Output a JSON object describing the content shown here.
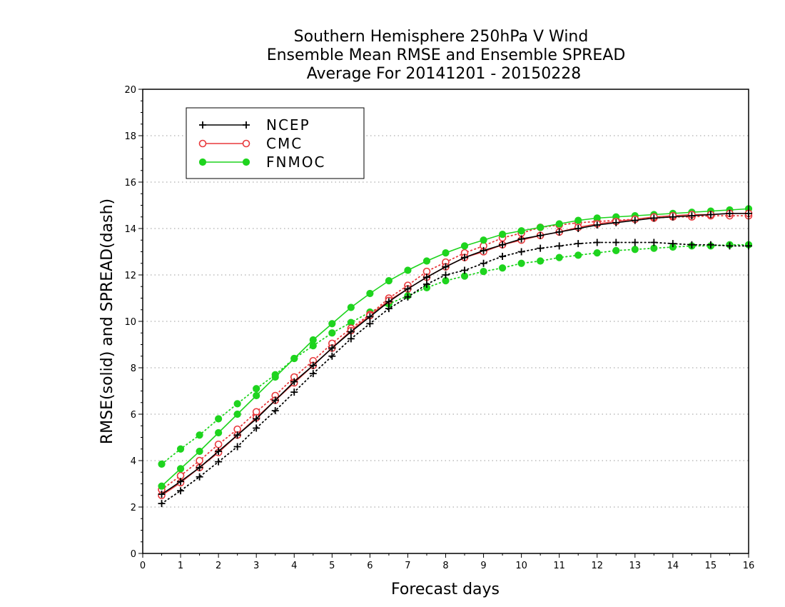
{
  "chart_data": {
    "type": "line",
    "title": [
      "Southern Hemisphere 250hPa V Wind",
      "Ensemble Mean RMSE and Ensemble SPREAD",
      "Average For 20141201 - 20150228"
    ],
    "xlabel": "Forecast days",
    "ylabel": "RMSE(solid) and SPREAD(dash)",
    "xlim": [
      0,
      16
    ],
    "ylim": [
      0,
      20
    ],
    "xticks": [
      0,
      1,
      2,
      3,
      4,
      5,
      6,
      7,
      8,
      9,
      10,
      11,
      12,
      13,
      14,
      15,
      16
    ],
    "yticks": [
      0,
      2,
      4,
      6,
      8,
      10,
      12,
      14,
      16,
      18,
      20
    ],
    "grid": "horizontal dotted",
    "legend": {
      "placement": "top-left",
      "entries": [
        "NCEP",
        "CMC",
        "FNMOC"
      ]
    },
    "x": [
      0.5,
      1,
      1.5,
      2,
      2.5,
      3,
      3.5,
      4,
      4.5,
      5,
      5.5,
      6,
      6.5,
      7,
      7.5,
      8,
      8.5,
      9,
      9.5,
      10,
      10.5,
      11,
      11.5,
      12,
      12.5,
      13,
      13.5,
      14,
      14.5,
      15,
      15.5,
      16
    ],
    "series": [
      {
        "name": "NCEP",
        "measure": "RMSE",
        "style": "solid",
        "marker": "plus",
        "color": "#000000",
        "values": [
          2.55,
          3.1,
          3.7,
          4.4,
          5.1,
          5.8,
          6.6,
          7.4,
          8.1,
          8.85,
          9.55,
          10.2,
          10.85,
          11.4,
          11.9,
          12.35,
          12.75,
          13.05,
          13.3,
          13.55,
          13.7,
          13.85,
          14.0,
          14.15,
          14.25,
          14.35,
          14.45,
          14.5,
          14.55,
          14.6,
          14.65,
          14.65
        ]
      },
      {
        "name": "CMC",
        "measure": "RMSE",
        "style": "solid",
        "marker": "open-circle",
        "color": "#e8393c",
        "values": [
          2.5,
          3.05,
          3.7,
          4.35,
          5.1,
          5.85,
          6.6,
          7.35,
          8.1,
          8.85,
          9.6,
          10.25,
          10.9,
          11.4,
          11.9,
          12.35,
          12.75,
          13.0,
          13.3,
          13.5,
          13.7,
          13.85,
          14.05,
          14.2,
          14.3,
          14.4,
          14.5,
          14.55,
          14.6,
          14.6,
          14.65,
          14.65
        ]
      },
      {
        "name": "FNMOC",
        "measure": "RMSE",
        "style": "solid",
        "marker": "filled-circle",
        "color": "#1ed41e",
        "values": [
          2.9,
          3.65,
          4.4,
          5.2,
          6.0,
          6.8,
          7.6,
          8.4,
          9.2,
          9.9,
          10.6,
          11.2,
          11.75,
          12.2,
          12.6,
          12.95,
          13.25,
          13.5,
          13.75,
          13.9,
          14.05,
          14.2,
          14.35,
          14.45,
          14.5,
          14.55,
          14.6,
          14.65,
          14.7,
          14.75,
          14.8,
          14.85
        ]
      },
      {
        "name": "NCEP",
        "measure": "SPREAD",
        "style": "dotted",
        "marker": "plus",
        "color": "#000000",
        "values": [
          2.15,
          2.7,
          3.3,
          3.95,
          4.6,
          5.4,
          6.15,
          6.95,
          7.75,
          8.5,
          9.25,
          9.9,
          10.55,
          11.05,
          11.6,
          12.0,
          12.2,
          12.5,
          12.8,
          13.0,
          13.15,
          13.25,
          13.35,
          13.4,
          13.4,
          13.4,
          13.4,
          13.35,
          13.3,
          13.3,
          13.25,
          13.25
        ]
      },
      {
        "name": "CMC",
        "measure": "SPREAD",
        "style": "dotted",
        "marker": "open-circle",
        "color": "#e8393c",
        "values": [
          2.75,
          3.35,
          4.0,
          4.7,
          5.35,
          6.1,
          6.8,
          7.6,
          8.3,
          9.05,
          9.7,
          10.3,
          11.0,
          11.55,
          12.15,
          12.55,
          12.95,
          13.25,
          13.6,
          13.8,
          14.05,
          14.15,
          14.25,
          14.3,
          14.35,
          14.4,
          14.45,
          14.5,
          14.5,
          14.55,
          14.55,
          14.55
        ]
      },
      {
        "name": "FNMOC",
        "measure": "SPREAD",
        "style": "dotted",
        "marker": "filled-circle",
        "color": "#1ed41e",
        "values": [
          3.85,
          4.5,
          5.1,
          5.8,
          6.45,
          7.1,
          7.7,
          8.4,
          8.95,
          9.5,
          9.95,
          10.4,
          10.75,
          11.1,
          11.45,
          11.75,
          11.95,
          12.15,
          12.3,
          12.5,
          12.6,
          12.75,
          12.85,
          12.95,
          13.05,
          13.1,
          13.15,
          13.2,
          13.25,
          13.25,
          13.3,
          13.3
        ]
      }
    ]
  }
}
